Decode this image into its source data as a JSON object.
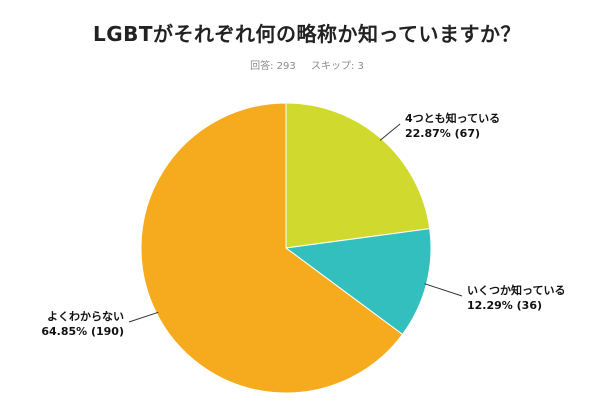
{
  "title": "LGBTがそれぞれ何の略称か知っていますか？",
  "stats": {
    "responses": "回答: 293",
    "skips": "スキップ: 3"
  },
  "chart_data": {
    "type": "pie",
    "slices": [
      {
        "label": "4つとも知っている",
        "percent": 22.87,
        "count": 67,
        "value_label": "22.87% (67)",
        "color": "#d0d92e"
      },
      {
        "label": "いくつか知っている",
        "percent": 12.29,
        "count": 36,
        "value_label": "12.29% (36)",
        "color": "#34bfbf"
      },
      {
        "label": "よくわからない",
        "percent": 64.85,
        "count": 190,
        "value_label": "64.85% (190)",
        "color": "#f6ab1e"
      }
    ]
  }
}
